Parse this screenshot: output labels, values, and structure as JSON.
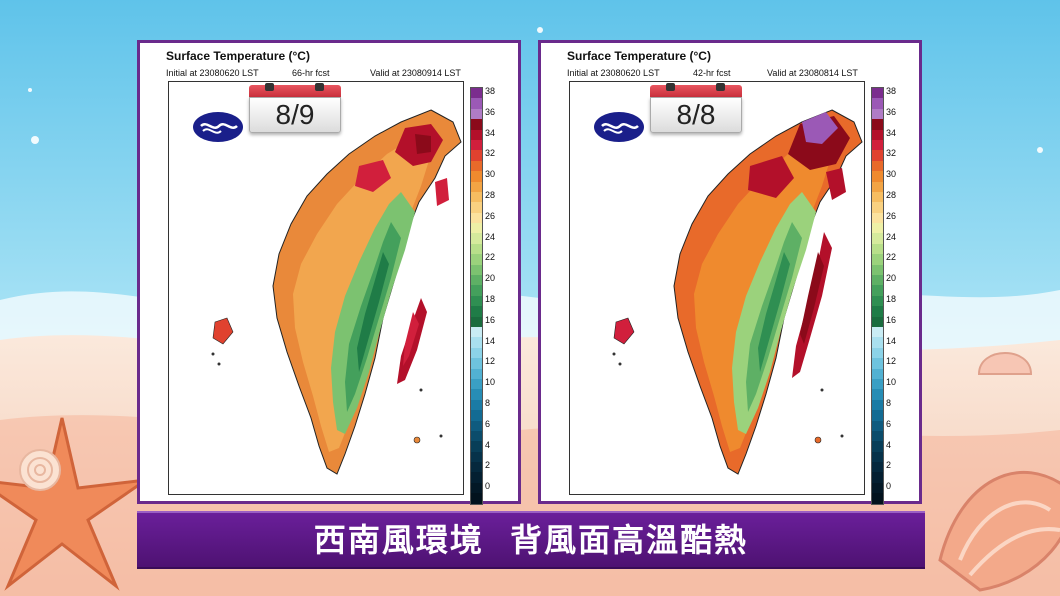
{
  "background": {
    "sky": "#7fd0ee",
    "sand": "#f6e6d8",
    "accent": "#6a2a8c"
  },
  "panels": [
    {
      "id": "left",
      "title": "Surface Temperature (°C)",
      "initial": "Initial at 23080620 LST",
      "forecast": "66-hr fcst",
      "valid": "Valid at 23080914 LST",
      "date_badge": "8/9"
    },
    {
      "id": "right",
      "title": "Surface Temperature (°C)",
      "initial": "Initial at 23080620 LST",
      "forecast": "42-hr fcst",
      "valid": "Valid at 23080814 LST",
      "date_badge": "8/8"
    }
  ],
  "colorbar": {
    "ticks": [
      "38",
      "36",
      "34",
      "32",
      "30",
      "28",
      "26",
      "24",
      "22",
      "20",
      "18",
      "16",
      "14",
      "12",
      "10",
      "8",
      "6",
      "4",
      "2",
      "0"
    ],
    "colors": [
      "#7b2d8e",
      "#9b59b6",
      "#b07cc6",
      "#8b0a1a",
      "#b3102a",
      "#d11f3c",
      "#e0422f",
      "#e86a2a",
      "#ef8a2e",
      "#f2a444",
      "#f6bd61",
      "#f9d181",
      "#fbe29e",
      "#eef0a6",
      "#d5ea9c",
      "#b8df8a",
      "#9bd27c",
      "#7cc270",
      "#5eb065",
      "#44a05c",
      "#2f8f52",
      "#1f7c47",
      "#1a6c3e",
      "#c9ecf4",
      "#a9e0ef",
      "#8cd3e8",
      "#6ec3de",
      "#52b1d2",
      "#3a9fc4",
      "#278db5",
      "#1a7ba5",
      "#136b93",
      "#0f5b7f",
      "#0b4c6b",
      "#083e58",
      "#06324a",
      "#05283d",
      "#041f31",
      "#031826",
      "#02121d"
    ]
  },
  "caption": "西南風環境  背風面高溫酷熱",
  "icons": {
    "logo": "cwa-logo-icon",
    "calendar": "calendar-icon"
  }
}
